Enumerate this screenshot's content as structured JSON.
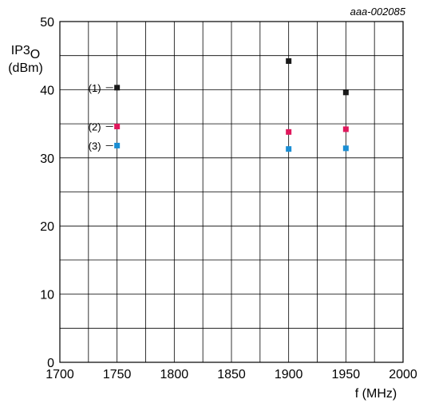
{
  "chart_data": {
    "type": "scatter",
    "figure_code": "aaa-002085",
    "ylabel_main": "IP3",
    "ylabel_sub": "O",
    "ylabel_unit": "(dBm)",
    "xlabel": "f (MHz)",
    "xlim": [
      1700,
      2000
    ],
    "ylim": [
      0,
      50
    ],
    "x_ticks": [
      1700,
      1750,
      1800,
      1850,
      1900,
      1950,
      2000
    ],
    "y_ticks": [
      0,
      10,
      20,
      30,
      40,
      50
    ],
    "grid": true,
    "series": [
      {
        "name": "(1)",
        "color": "#1a1a1a",
        "x": [
          1750,
          1900,
          1950
        ],
        "y": [
          40.3,
          44.2,
          39.6
        ]
      },
      {
        "name": "(2)",
        "color": "#e0185c",
        "x": [
          1750,
          1900,
          1950
        ],
        "y": [
          34.6,
          33.8,
          34.2
        ]
      },
      {
        "name": "(3)",
        "color": "#1a8ed4",
        "x": [
          1750,
          1900,
          1950
        ],
        "y": [
          31.8,
          31.3,
          31.4
        ]
      }
    ]
  }
}
